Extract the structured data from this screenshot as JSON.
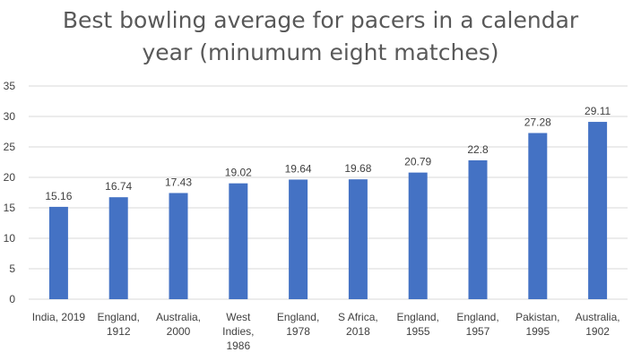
{
  "chart_data": {
    "type": "bar",
    "title_lines": [
      "Best bowling average for pacers in a calendar",
      "year (minumum eight matches)"
    ],
    "categories": [
      [
        "India, 2019"
      ],
      [
        "England,",
        "1912"
      ],
      [
        "Australia,",
        "2000"
      ],
      [
        "West",
        "Indies,",
        "1986"
      ],
      [
        "England,",
        "1978"
      ],
      [
        "S Africa,",
        "2018"
      ],
      [
        "England,",
        "1955"
      ],
      [
        "England,",
        "1957"
      ],
      [
        "Pakistan,",
        "1995"
      ],
      [
        "Australia,",
        "1902"
      ]
    ],
    "values": [
      15.16,
      16.74,
      17.43,
      19.02,
      19.64,
      19.68,
      20.79,
      22.8,
      27.28,
      29.11
    ],
    "data_labels": [
      "15.16",
      "16.74",
      "17.43",
      "19.02",
      "19.64",
      "19.68",
      "20.79",
      "22.8",
      "27.28",
      "29.11"
    ],
    "y_ticks": [
      0,
      5,
      10,
      15,
      20,
      25,
      30,
      35
    ],
    "ylim": [
      0,
      35
    ],
    "grid": true,
    "legend": "none",
    "bar_color": "#4472C4",
    "grid_color": "#D9D9D9"
  }
}
